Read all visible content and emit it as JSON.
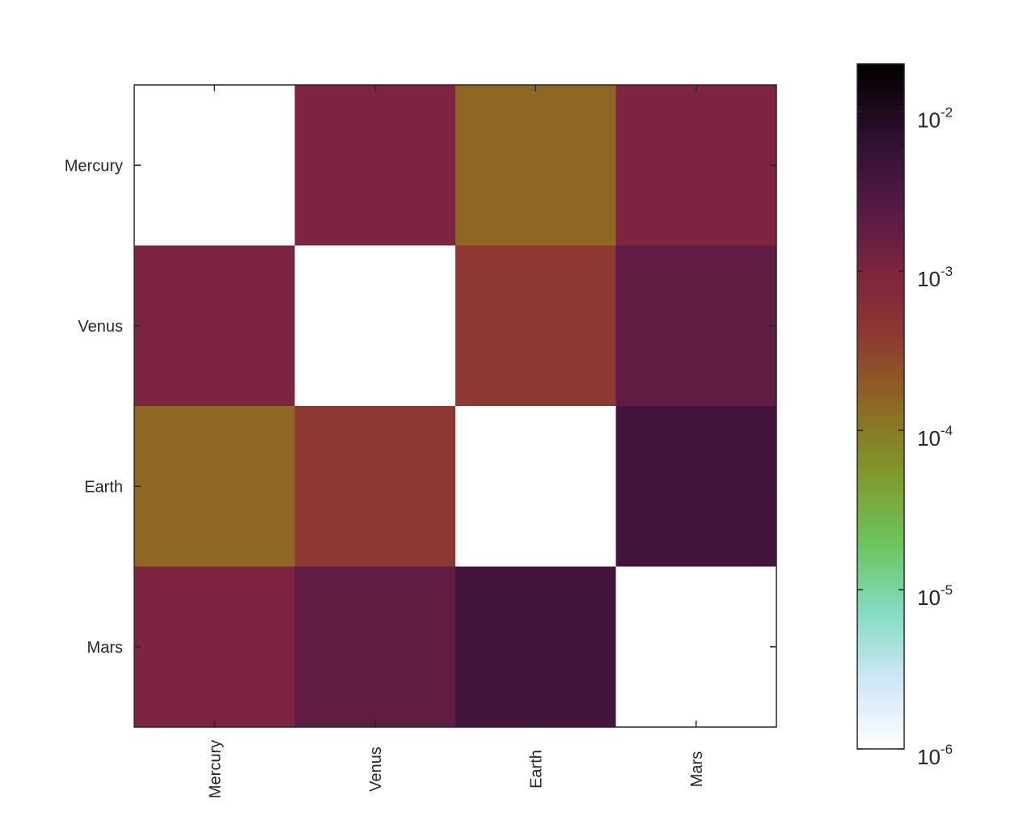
{
  "chart_data": {
    "type": "heatmap",
    "rows": [
      "Mercury",
      "Venus",
      "Earth",
      "Mars"
    ],
    "columns": [
      "Mercury",
      "Venus",
      "Earth",
      "Mars"
    ],
    "values": [
      [
        null,
        0.001,
        0.00015,
        0.001
      ],
      [
        0.001,
        null,
        0.0004,
        0.002
      ],
      [
        0.00015,
        0.0004,
        null,
        0.004
      ],
      [
        0.001,
        0.002,
        0.004,
        null
      ]
    ],
    "color_scale": "log",
    "clim": [
      1e-06,
      0.02
    ],
    "colorbar_ticks": [
      {
        "base": "10",
        "exp": "-6",
        "value": 1e-06
      },
      {
        "base": "10",
        "exp": "-5",
        "value": 1e-05
      },
      {
        "base": "10",
        "exp": "-4",
        "value": 0.0001
      },
      {
        "base": "10",
        "exp": "-3",
        "value": 0.001
      },
      {
        "base": "10",
        "exp": "-2",
        "value": 0.01
      }
    ],
    "colormap": [
      "#ffffff",
      "#cfe6f7",
      "#82dcc2",
      "#6cc45c",
      "#7f9a2c",
      "#8e6a22",
      "#8e3a30",
      "#7c2340",
      "#521945",
      "#2a0f2c",
      "#000000"
    ],
    "diagonal_color": "#ffffff",
    "grid": false,
    "legend": "colorbar-right"
  }
}
